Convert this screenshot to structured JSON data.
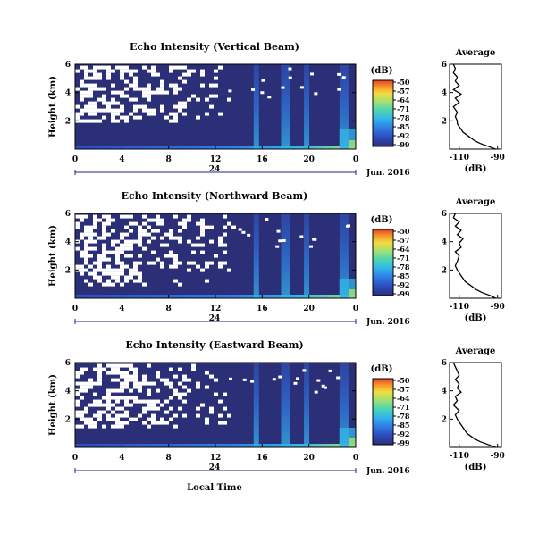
{
  "chart_data": [
    {
      "type": "heatmap",
      "title": "Echo Intensity (Vertical Beam)",
      "ylabel": "Height (km)",
      "yticks": [
        "2",
        "4",
        "6"
      ],
      "xticks": [
        "0",
        "4",
        "8",
        "12",
        "16",
        "20",
        "0"
      ],
      "date_marker": "24",
      "date_label": "Jun. 2016",
      "xlim": [
        0,
        24
      ],
      "ylim": [
        0,
        6
      ],
      "colorbar": {
        "unit": "(dB)",
        "ticks": [
          "-50",
          "-57",
          "-64",
          "-71",
          "-78",
          "-85",
          "-92",
          "-99"
        ]
      },
      "features": {
        "missing_low_km": 2.0,
        "missing_high_km": 5.9,
        "missing_until_h": 13.0,
        "precip_bands_h": [
          15.5,
          18.0,
          19.8,
          23.0
        ]
      },
      "profile": {
        "title": "Average",
        "xlabel": "(dB)",
        "xticks": [
          "-110",
          "-90"
        ],
        "yticks": [
          "2",
          "4",
          "6"
        ],
        "heights": [
          0.0,
          0.2,
          0.4,
          0.6,
          0.8,
          1.0,
          1.2,
          1.4,
          1.6,
          1.8,
          2.0,
          2.3,
          2.6,
          3.0,
          3.3,
          3.6,
          3.9,
          4.2,
          4.5,
          4.8,
          5.1,
          5.4,
          5.7,
          6.0
        ],
        "values": [
          -91,
          -95,
          -99,
          -102,
          -104,
          -106,
          -108,
          -109,
          -110,
          -111,
          -111,
          -112,
          -111,
          -113,
          -110,
          -112,
          -109,
          -113,
          -110,
          -112,
          -111,
          -113,
          -112,
          -113
        ]
      }
    },
    {
      "type": "heatmap",
      "title": "Echo Intensity (Northward Beam)",
      "ylabel": "Height (km)",
      "yticks": [
        "2",
        "4",
        "6"
      ],
      "xticks": [
        "0",
        "4",
        "8",
        "12",
        "16",
        "20",
        "0"
      ],
      "date_marker": "24",
      "date_label": "Jun. 2016",
      "xlim": [
        0,
        24
      ],
      "ylim": [
        0,
        6
      ],
      "colorbar": {
        "unit": "(dB)",
        "ticks": [
          "-50",
          "-57",
          "-64",
          "-71",
          "-78",
          "-85",
          "-92",
          "-99"
        ]
      },
      "features": {
        "missing_low_km": 1.0,
        "missing_high_km": 5.9,
        "missing_until_h": 13.5,
        "precip_bands_h": [
          15.5,
          18.0,
          19.8,
          23.0
        ]
      },
      "profile": {
        "title": "Average",
        "xlabel": "(dB)",
        "xticks": [
          "-110",
          "-90"
        ],
        "yticks": [
          "2",
          "4",
          "6"
        ],
        "heights": [
          0.0,
          0.2,
          0.4,
          0.6,
          0.8,
          1.0,
          1.2,
          1.4,
          1.6,
          1.8,
          2.0,
          2.3,
          2.6,
          3.0,
          3.3,
          3.6,
          3.9,
          4.2,
          4.5,
          4.8,
          5.1,
          5.4,
          5.7,
          6.0
        ],
        "values": [
          -91,
          -94,
          -98,
          -101,
          -103,
          -105,
          -107,
          -108,
          -109,
          -110,
          -111,
          -112,
          -111,
          -110,
          -112,
          -109,
          -110,
          -108,
          -111,
          -109,
          -112,
          -110,
          -113,
          -112
        ]
      }
    },
    {
      "type": "heatmap",
      "title": "Echo Intensity (Eastward Beam)",
      "ylabel": "Height (km)",
      "yticks": [
        "2",
        "4",
        "6"
      ],
      "xticks": [
        "0",
        "4",
        "8",
        "12",
        "16",
        "20",
        "0"
      ],
      "date_marker": "24",
      "date_label": "Jun. 2016",
      "xlabel": "Local Time",
      "xlim": [
        0,
        24
      ],
      "ylim": [
        0,
        6
      ],
      "colorbar": {
        "unit": "(dB)",
        "ticks": [
          "-50",
          "-57",
          "-64",
          "-71",
          "-78",
          "-85",
          "-92",
          "-99"
        ]
      },
      "features": {
        "missing_low_km": 1.5,
        "missing_high_km": 5.9,
        "missing_until_h": 13.0,
        "precip_bands_h": [
          15.5,
          18.0,
          19.8,
          23.0
        ]
      },
      "profile": {
        "title": "Average",
        "xlabel": "(dB)",
        "xticks": [
          "-110",
          "-90"
        ],
        "yticks": [
          "2",
          "4",
          "6"
        ],
        "heights": [
          0.0,
          0.2,
          0.4,
          0.6,
          0.8,
          1.0,
          1.2,
          1.4,
          1.6,
          1.8,
          2.0,
          2.3,
          2.6,
          3.0,
          3.3,
          3.6,
          3.9,
          4.2,
          4.5,
          4.8,
          5.1,
          5.4,
          5.7,
          6.0
        ],
        "values": [
          -91,
          -95,
          -99,
          -102,
          -104,
          -106,
          -107,
          -108,
          -109,
          -110,
          -111,
          -112,
          -110,
          -113,
          -111,
          -112,
          -109,
          -111,
          -110,
          -112,
          -110,
          -111,
          -112,
          -113
        ]
      }
    }
  ],
  "colors": {
    "background_missing": "#ffffff",
    "low": "#2b2f78",
    "colormap": [
      "#2b2f78",
      "#2d4bbd",
      "#2f7de6",
      "#33b7e8",
      "#4fd6b0",
      "#a6e070",
      "#f2dc40",
      "#f59a2a",
      "#e8402a"
    ]
  }
}
